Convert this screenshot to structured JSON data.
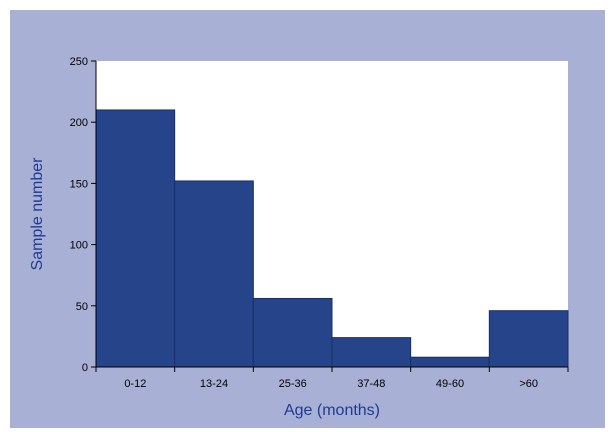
{
  "chart_data": {
    "type": "bar",
    "title": "",
    "xlabel": "Age (months)",
    "ylabel": "Sample number",
    "categories": [
      "0-12",
      "13-24",
      "25-36",
      "37-48",
      "49-60",
      ">60"
    ],
    "values": [
      210,
      152,
      56,
      24,
      8,
      46
    ],
    "ylim": [
      0,
      250
    ],
    "yticks": [
      0,
      50,
      100,
      150,
      200,
      250
    ],
    "grid": false,
    "legend": "none",
    "colors": {
      "bar_fill": "#25448a",
      "bar_stroke": "#1a2f66",
      "plot_background": "#ffffff",
      "frame_background": "#a9b0d6",
      "axis_title": "#1f3a93"
    }
  }
}
